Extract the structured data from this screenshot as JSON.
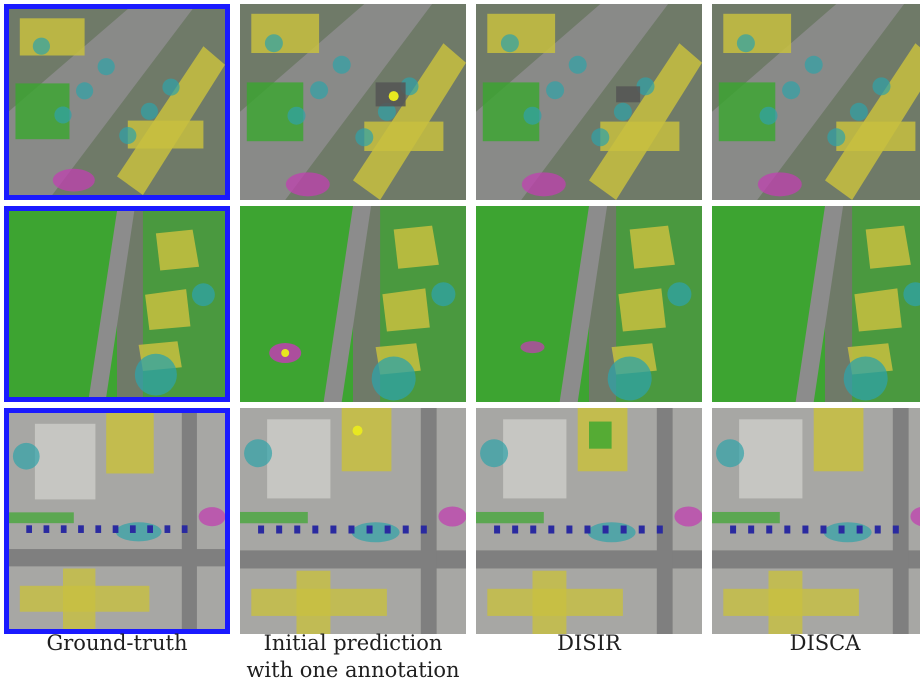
{
  "columns": [
    {
      "id": "ground-truth",
      "caption_line1": "Ground-truth",
      "caption_line2": ""
    },
    {
      "id": "initial-prediction",
      "caption_line1": "Initial prediction",
      "caption_line2": "with one annotation"
    },
    {
      "id": "disir",
      "caption_line1": "DISIR",
      "caption_line2": ""
    },
    {
      "id": "disca",
      "caption_line1": "DISCA",
      "caption_line2": ""
    }
  ],
  "rows": [
    "row-1",
    "row-2",
    "row-3"
  ],
  "colors": {
    "ground_truth_border": "#1a1aff",
    "building": "#c8c040",
    "vegetation": "#3aa62e",
    "tree": "#2fa3a8",
    "clutter": "#c040b0",
    "road": "#8c8c8c",
    "car": "#2a2aa0",
    "annotation_point": "#e8e820"
  }
}
